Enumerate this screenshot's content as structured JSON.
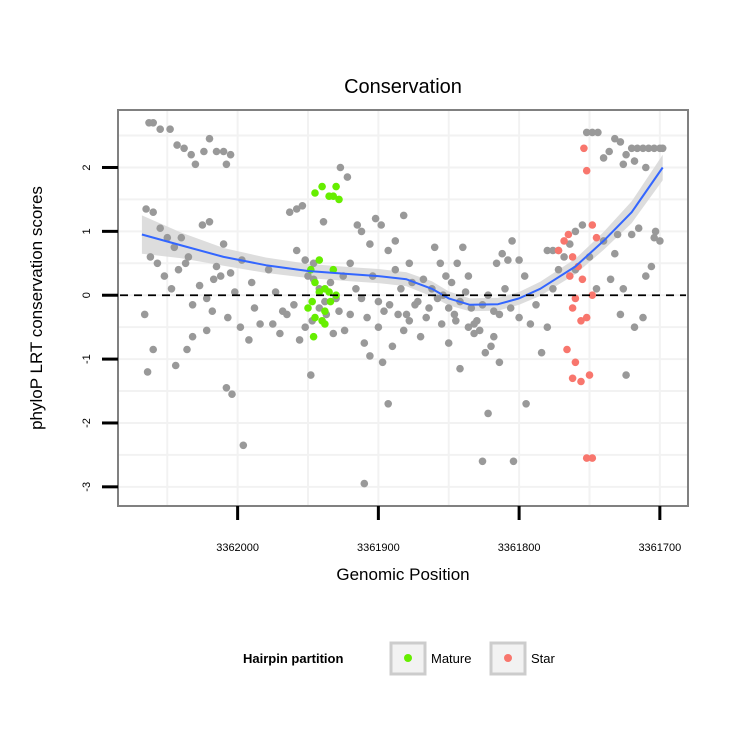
{
  "chart_data": {
    "type": "scatter",
    "title": "Conservation",
    "xlabel": "Genomic Position",
    "ylabel": "phyloP LRT conservation scores",
    "x_reversed": true,
    "xlim": [
      3362085,
      3361680
    ],
    "ylim": [
      -3.3,
      2.9
    ],
    "x_ticks": [
      3362000,
      3361900,
      3361800,
      3361700
    ],
    "x_tick_labels": [
      "3362000",
      "3361900",
      "3361800",
      "3361700"
    ],
    "y_ticks": [
      -3,
      -2,
      -1,
      0,
      1,
      2
    ],
    "y_tick_labels": [
      "-3",
      "-2",
      "-1",
      "0",
      "1",
      "2"
    ],
    "grid": true,
    "reference_line": {
      "y": 0,
      "style": "dashed",
      "color": "#000000"
    },
    "legend": {
      "title": "Hairpin partition",
      "position": "bottom",
      "entries": [
        {
          "label": "Mature",
          "color": "#66ee00"
        },
        {
          "label": "Star",
          "color": "#f8766d"
        }
      ]
    },
    "colors": {
      "background_points": "#999999",
      "mature": "#66ee00",
      "star": "#f8766d",
      "smooth": "#3366ff",
      "ribbon": "#d9d9d9"
    },
    "smooth": {
      "x": [
        3362068,
        3362040,
        3362010,
        3361980,
        3361950,
        3361920,
        3361900,
        3361880,
        3361862,
        3361850,
        3361835,
        3361815,
        3361800,
        3361785,
        3361760,
        3361740,
        3361720,
        3361698
      ],
      "y": [
        0.95,
        0.78,
        0.6,
        0.47,
        0.38,
        0.33,
        0.3,
        0.25,
        0.1,
        -0.05,
        -0.15,
        -0.14,
        -0.05,
        0.1,
        0.45,
        0.85,
        1.3,
        2.0
      ],
      "band": [
        0.3,
        0.2,
        0.14,
        0.12,
        0.11,
        0.11,
        0.11,
        0.11,
        0.12,
        0.11,
        0.1,
        0.1,
        0.1,
        0.11,
        0.12,
        0.14,
        0.17,
        0.2
      ]
    },
    "series": [
      {
        "name": "background",
        "points": [
          [
            3362063,
            2.7
          ],
          [
            3362060,
            2.7
          ],
          [
            3362055,
            2.6
          ],
          [
            3362048,
            2.6
          ],
          [
            3362043,
            2.35
          ],
          [
            3362038,
            2.3
          ],
          [
            3362033,
            2.2
          ],
          [
            3362030,
            2.05
          ],
          [
            3362024,
            2.25
          ],
          [
            3362020,
            2.45
          ],
          [
            3362015,
            2.25
          ],
          [
            3362010,
            2.25
          ],
          [
            3362005,
            2.2
          ],
          [
            3362008,
            2.05
          ],
          [
            3362065,
            1.35
          ],
          [
            3362060,
            1.3
          ],
          [
            3362055,
            1.05
          ],
          [
            3362050,
            0.9
          ],
          [
            3362045,
            0.75
          ],
          [
            3362040,
            0.9
          ],
          [
            3362035,
            0.6
          ],
          [
            3362025,
            1.1
          ],
          [
            3362020,
            1.15
          ],
          [
            3362015,
            0.45
          ],
          [
            3362010,
            0.8
          ],
          [
            3362005,
            0.35
          ],
          [
            3361997,
            0.55
          ],
          [
            3361990,
            0.2
          ],
          [
            3362062,
            0.6
          ],
          [
            3362057,
            0.5
          ],
          [
            3362052,
            0.3
          ],
          [
            3362047,
            0.1
          ],
          [
            3362042,
            0.4
          ],
          [
            3362037,
            0.5
          ],
          [
            3362032,
            -0.15
          ],
          [
            3362027,
            0.15
          ],
          [
            3362022,
            -0.05
          ],
          [
            3362017,
            0.25
          ],
          [
            3362012,
            0.3
          ],
          [
            3362007,
            -0.35
          ],
          [
            3362002,
            0.05
          ],
          [
            3361998,
            -0.5
          ],
          [
            3362066,
            -0.3
          ],
          [
            3362064,
            -1.2
          ],
          [
            3362060,
            -0.85
          ],
          [
            3362044,
            -1.1
          ],
          [
            3362036,
            -0.85
          ],
          [
            3362032,
            -0.65
          ],
          [
            3362022,
            -0.55
          ],
          [
            3362018,
            -0.25
          ],
          [
            3362008,
            -1.45
          ],
          [
            3362004,
            -1.55
          ],
          [
            3361996,
            -2.35
          ],
          [
            3361992,
            -0.7
          ],
          [
            3361988,
            -0.2
          ],
          [
            3361984,
            -0.45
          ],
          [
            3361978,
            0.4
          ],
          [
            3361973,
            0.05
          ],
          [
            3361968,
            -0.25
          ],
          [
            3361963,
            1.3
          ],
          [
            3361958,
            1.35
          ],
          [
            3361954,
            1.4
          ],
          [
            3361950,
            0.3
          ],
          [
            3361946,
            0.25
          ],
          [
            3361942,
            0.1
          ],
          [
            3361938,
            -0.1
          ],
          [
            3361934,
            0.2
          ],
          [
            3361930,
            -0.05
          ],
          [
            3361925,
            0.3
          ],
          [
            3361920,
            0.5
          ],
          [
            3361975,
            -0.45
          ],
          [
            3361970,
            -0.6
          ],
          [
            3361965,
            -0.3
          ],
          [
            3361960,
            -0.15
          ],
          [
            3361956,
            -0.7
          ],
          [
            3361952,
            -0.5
          ],
          [
            3361947,
            -0.4
          ],
          [
            3361942,
            -0.2
          ],
          [
            3361937,
            -0.3
          ],
          [
            3361932,
            -0.6
          ],
          [
            3361928,
            -0.25
          ],
          [
            3361948,
            -1.25
          ],
          [
            3361924,
            -0.55
          ],
          [
            3361920,
            -0.3
          ],
          [
            3361958,
            0.7
          ],
          [
            3361952,
            0.55
          ],
          [
            3361946,
            0.5
          ],
          [
            3361939,
            1.15
          ],
          [
            3361927,
            2.0
          ],
          [
            3361922,
            1.85
          ],
          [
            3361915,
            1.1
          ],
          [
            3361912,
            1.0
          ],
          [
            3361906,
            0.8
          ],
          [
            3361902,
            1.2
          ],
          [
            3361898,
            1.1
          ],
          [
            3361893,
            0.7
          ],
          [
            3361888,
            0.85
          ],
          [
            3361882,
            1.25
          ],
          [
            3361878,
            0.5
          ],
          [
            3361916,
            0.1
          ],
          [
            3361912,
            -0.05
          ],
          [
            3361908,
            -0.35
          ],
          [
            3361904,
            0.3
          ],
          [
            3361900,
            -0.1
          ],
          [
            3361896,
            -0.25
          ],
          [
            3361892,
            -0.15
          ],
          [
            3361888,
            0.4
          ],
          [
            3361884,
            0.1
          ],
          [
            3361880,
            -0.3
          ],
          [
            3361876,
            0.2
          ],
          [
            3361872,
            -0.1
          ],
          [
            3361868,
            0.25
          ],
          [
            3361864,
            -0.2
          ],
          [
            3361910,
            -0.75
          ],
          [
            3361906,
            -0.95
          ],
          [
            3361900,
            -0.5
          ],
          [
            3361897,
            -1.05
          ],
          [
            3361893,
            -1.7
          ],
          [
            3361890,
            -0.8
          ],
          [
            3361886,
            -0.3
          ],
          [
            3361882,
            -0.55
          ],
          [
            3361878,
            -0.4
          ],
          [
            3361874,
            -0.15
          ],
          [
            3361870,
            -0.65
          ],
          [
            3361866,
            -0.35
          ],
          [
            3361910,
            -2.95
          ],
          [
            3361862,
            0.1
          ],
          [
            3361858,
            -0.05
          ],
          [
            3361854,
            0.0
          ],
          [
            3361850,
            -0.2
          ],
          [
            3361846,
            -0.3
          ],
          [
            3361842,
            -0.1
          ],
          [
            3361838,
            0.05
          ],
          [
            3361834,
            -0.2
          ],
          [
            3361830,
            -0.4
          ],
          [
            3361826,
            -0.15
          ],
          [
            3361822,
            0.0
          ],
          [
            3361818,
            -0.25
          ],
          [
            3361814,
            -0.3
          ],
          [
            3361810,
            0.1
          ],
          [
            3361860,
            0.75
          ],
          [
            3361856,
            0.5
          ],
          [
            3361852,
            0.3
          ],
          [
            3361848,
            0.2
          ],
          [
            3361844,
            0.5
          ],
          [
            3361840,
            0.75
          ],
          [
            3361836,
            0.3
          ],
          [
            3361832,
            -0.6
          ],
          [
            3361828,
            -0.55
          ],
          [
            3361824,
            -0.9
          ],
          [
            3361820,
            -0.8
          ],
          [
            3361816,
            0.5
          ],
          [
            3361812,
            0.65
          ],
          [
            3361808,
            0.55
          ],
          [
            3361855,
            -0.45
          ],
          [
            3361850,
            -0.75
          ],
          [
            3361845,
            -0.4
          ],
          [
            3361842,
            -1.15
          ],
          [
            3361836,
            -0.5
          ],
          [
            3361832,
            -0.45
          ],
          [
            3361826,
            -2.6
          ],
          [
            3361822,
            -1.85
          ],
          [
            3361818,
            -0.65
          ],
          [
            3361814,
            -1.05
          ],
          [
            3361806,
            -0.2
          ],
          [
            3361804,
            -2.6
          ],
          [
            3361800,
            -0.35
          ],
          [
            3361795,
            -1.7
          ],
          [
            3361805,
            0.85
          ],
          [
            3361800,
            0.55
          ],
          [
            3361796,
            0.3
          ],
          [
            3361792,
            -0.45
          ],
          [
            3361788,
            -0.15
          ],
          [
            3361784,
            -0.9
          ],
          [
            3361780,
            -0.5
          ],
          [
            3361776,
            0.1
          ],
          [
            3361772,
            0.4
          ],
          [
            3361768,
            0.6
          ],
          [
            3361764,
            0.8
          ],
          [
            3361760,
            0.4
          ],
          [
            3361780,
            0.7
          ],
          [
            3361776,
            0.7
          ],
          [
            3361772,
            0.7
          ],
          [
            3361760,
            1.0
          ],
          [
            3361755,
            1.1
          ],
          [
            3361750,
            0.6
          ],
          [
            3361745,
            0.1
          ],
          [
            3361740,
            0.85
          ],
          [
            3361735,
            0.25
          ],
          [
            3361730,
            0.95
          ],
          [
            3361726,
            0.1
          ],
          [
            3361720,
            0.95
          ],
          [
            3361715,
            1.05
          ],
          [
            3361712,
            -0.35
          ],
          [
            3361732,
            0.65
          ],
          [
            3361728,
            -0.3
          ],
          [
            3361724,
            -1.25
          ],
          [
            3361718,
            -0.5
          ],
          [
            3361710,
            0.3
          ],
          [
            3361706,
            0.45
          ],
          [
            3361703,
            1.0
          ],
          [
            3361700,
            0.85
          ],
          [
            3361704,
            0.9
          ],
          [
            3361752,
            2.55
          ],
          [
            3361748,
            2.55
          ],
          [
            3361744,
            2.55
          ],
          [
            3361740,
            2.15
          ],
          [
            3361736,
            2.25
          ],
          [
            3361732,
            2.45
          ],
          [
            3361728,
            2.4
          ],
          [
            3361724,
            2.2
          ],
          [
            3361720,
            2.3
          ],
          [
            3361716,
            2.3
          ],
          [
            3361712,
            2.3
          ],
          [
            3361708,
            2.3
          ],
          [
            3361704,
            2.3
          ],
          [
            3361700,
            2.3
          ],
          [
            3361698,
            2.3
          ],
          [
            3361726,
            2.05
          ],
          [
            3361718,
            2.1
          ],
          [
            3361710,
            2.0
          ]
        ]
      },
      {
        "name": "Mature",
        "points": [
          [
            3361945,
            1.6
          ],
          [
            3361940,
            1.7
          ],
          [
            3361935,
            1.55
          ],
          [
            3361932,
            1.55
          ],
          [
            3361928,
            1.5
          ],
          [
            3361930,
            1.7
          ],
          [
            3361942,
            0.55
          ],
          [
            3361932,
            0.4
          ],
          [
            3361948,
            0.4
          ],
          [
            3361945,
            0.2
          ],
          [
            3361938,
            0.1
          ],
          [
            3361935,
            0.05
          ],
          [
            3361950,
            -0.2
          ],
          [
            3361947,
            -0.1
          ],
          [
            3361942,
            0.05
          ],
          [
            3361938,
            -0.25
          ],
          [
            3361945,
            -0.35
          ],
          [
            3361940,
            -0.4
          ],
          [
            3361938,
            -0.45
          ],
          [
            3361946,
            -0.65
          ],
          [
            3361934,
            -0.1
          ],
          [
            3361930,
            0.0
          ]
        ]
      },
      {
        "name": "Star",
        "points": [
          [
            3361754,
            2.3
          ],
          [
            3361752,
            1.95
          ],
          [
            3361768,
            0.85
          ],
          [
            3361765,
            0.95
          ],
          [
            3361772,
            0.7
          ],
          [
            3361762,
            0.6
          ],
          [
            3361758,
            0.45
          ],
          [
            3361755,
            0.25
          ],
          [
            3361764,
            0.3
          ],
          [
            3361760,
            -0.05
          ],
          [
            3361748,
            0.0
          ],
          [
            3361752,
            -0.35
          ],
          [
            3361756,
            -0.4
          ],
          [
            3361762,
            -0.2
          ],
          [
            3361766,
            -0.85
          ],
          [
            3361760,
            -1.05
          ],
          [
            3361762,
            -1.3
          ],
          [
            3361756,
            -1.35
          ],
          [
            3361750,
            -1.25
          ],
          [
            3361748,
            1.1
          ],
          [
            3361745,
            0.9
          ],
          [
            3361752,
            -2.55
          ],
          [
            3361748,
            -2.55
          ]
        ]
      }
    ]
  }
}
